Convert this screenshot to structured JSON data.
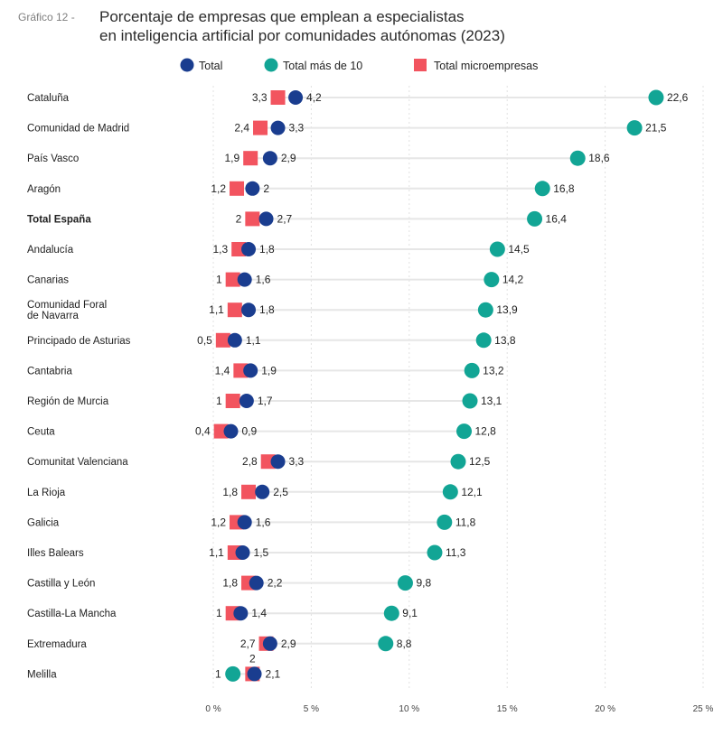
{
  "title_prefix": "Gráfico 12 -",
  "title_line1": "Porcentaje de empresas que emplean a especialistas",
  "title_line2": "en inteligencia artificial por comunidades autónomas (2023)",
  "colors": {
    "total": "#1a3d8f",
    "mas10": "#12a595",
    "micro": "#f2545f",
    "track": "#e6e6e6",
    "grid": "#e0e0e0"
  },
  "legend": [
    {
      "key": "total",
      "label": "Total",
      "icon": "circle-marker"
    },
    {
      "key": "mas10",
      "label": "Total más de 10",
      "icon": "circle-marker"
    },
    {
      "key": "micro",
      "label": "Total microempresas",
      "icon": "square-marker"
    }
  ],
  "chart_data": {
    "type": "scatter",
    "orientation": "horizontal",
    "x_ticks": [
      "0 %",
      "5 %",
      "10 %",
      "15 %",
      "20 %",
      "25 %"
    ],
    "x_tick_values": [
      0,
      5,
      10,
      15,
      20,
      25
    ],
    "xlim": [
      0,
      25
    ],
    "grid": true,
    "legend_position": "top",
    "categories": [
      "Cataluña",
      "Comunidad de Madrid",
      "País Vasco",
      "Aragón",
      "Total España",
      "Andalucía",
      "Canarias",
      "Comunidad Foral de Navarra",
      "Principado de Asturias",
      "Cantabria",
      "Región de Murcia",
      "Ceuta",
      "Comunitat Valenciana",
      "La Rioja",
      "Galicia",
      "Illes Balears",
      "Castilla y León",
      "Castilla-La Mancha",
      "Extremadura",
      "Melilla"
    ],
    "category_lines": [
      [
        "Cataluña"
      ],
      [
        "Comunidad de Madrid"
      ],
      [
        "País Vasco"
      ],
      [
        "Aragón"
      ],
      [
        "Total España"
      ],
      [
        "Andalucía"
      ],
      [
        "Canarias"
      ],
      [
        "Comunidad Foral",
        "de Navarra"
      ],
      [
        "Principado de Asturias"
      ],
      [
        "Cantabria"
      ],
      [
        "Región de Murcia"
      ],
      [
        "Ceuta"
      ],
      [
        "Comunitat Valenciana"
      ],
      [
        "La Rioja"
      ],
      [
        "Galicia"
      ],
      [
        "Illes Balears"
      ],
      [
        "Castilla y León"
      ],
      [
        "Castilla-La Mancha"
      ],
      [
        "Extremadura"
      ],
      [
        "Melilla"
      ]
    ],
    "bold_category": "Total España",
    "series": [
      {
        "key": "micro",
        "name": "Total microempresas",
        "values": [
          3.3,
          2.4,
          1.9,
          1.2,
          2,
          1.3,
          1,
          1.1,
          0.5,
          1.4,
          1,
          0.4,
          2.8,
          1.8,
          1.2,
          1.1,
          1.8,
          1,
          2.7,
          2
        ],
        "labels": [
          "3,3",
          "2,4",
          "1,9",
          "1,2",
          "2",
          "1,3",
          "1",
          "1,1",
          "0,5",
          "1,4",
          "1",
          "0,4",
          "2,8",
          "1,8",
          "1,2",
          "1,1",
          "1,8",
          "1",
          "2,7",
          "2"
        ]
      },
      {
        "key": "total",
        "name": "Total",
        "values": [
          4.2,
          3.3,
          2.9,
          2,
          2.7,
          1.8,
          1.6,
          1.8,
          1.1,
          1.9,
          1.7,
          0.9,
          3.3,
          2.5,
          1.6,
          1.5,
          2.2,
          1.4,
          2.9,
          2.1
        ],
        "labels": [
          "4,2",
          "3,3",
          "2,9",
          "2",
          "2,7",
          "1,8",
          "1,6",
          "1,8",
          "1,1",
          "1,9",
          "1,7",
          "0,9",
          "3,3",
          "2,5",
          "1,6",
          "1,5",
          "2,2",
          "1,4",
          "2,9",
          "2,1"
        ]
      },
      {
        "key": "mas10",
        "name": "Total más de 10",
        "values": [
          22.6,
          21.5,
          18.6,
          16.8,
          16.4,
          14.5,
          14.2,
          13.9,
          13.8,
          13.2,
          13.1,
          12.8,
          12.5,
          12.1,
          11.8,
          11.3,
          9.8,
          9.1,
          8.8,
          1
        ],
        "labels": [
          "22,6",
          "21,5",
          "18,6",
          "16,8",
          "16,4",
          "14,5",
          "14,2",
          "13,9",
          "13,8",
          "13,2",
          "13,1",
          "12,8",
          "12,5",
          "12,1",
          "11,8",
          "11,3",
          "9,8",
          "9,1",
          "8,8",
          "1"
        ]
      }
    ]
  }
}
